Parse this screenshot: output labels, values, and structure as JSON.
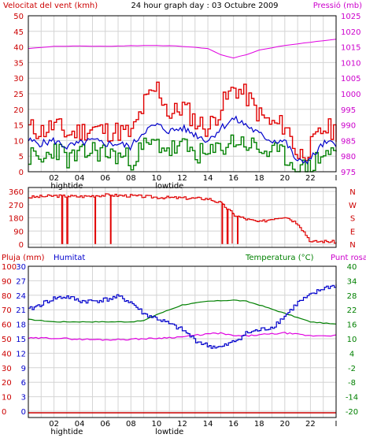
{
  "chart_data": [
    {
      "type": "line",
      "title": "24 hour graph day : 03 Octubre 2009",
      "left_axis_label": "Velocitat del vent (kmh)",
      "right_axis_label": "Pressió (mb)",
      "left_ticks": [
        "0",
        "5",
        "10",
        "15",
        "20",
        "25",
        "30",
        "35",
        "40",
        "45",
        "50"
      ],
      "right_ticks": [
        "975",
        "980",
        "985",
        "990",
        "995",
        "1000",
        "1005",
        "1010",
        "1015",
        "1020",
        "1025"
      ],
      "ylim_left": [
        0,
        50
      ],
      "ylim_right": [
        975,
        1025
      ],
      "x_ticks": [
        "02",
        "04",
        "06",
        "08",
        "10",
        "12",
        "14",
        "16",
        "18",
        "20",
        "22",
        "I"
      ],
      "x_sublabels": [
        "hightide",
        "lowtide"
      ],
      "grid": true,
      "colors": {
        "gust": "#e00000",
        "wind": "#0000cc",
        "average": "#008000",
        "pressure": "#e000e0",
        "grid": "#cccccc",
        "left_axis": "#cc0000",
        "right_axis": "#cc00cc"
      },
      "series": [
        {
          "name": "gust",
          "x": [
            0,
            1,
            2,
            3,
            4,
            5,
            6,
            7,
            8,
            9,
            10,
            11,
            12,
            13,
            14,
            15,
            16,
            17,
            18,
            19,
            20,
            21,
            22,
            23,
            24
          ],
          "values": [
            14,
            13,
            15,
            12,
            13,
            14,
            13,
            13,
            12,
            22,
            27,
            18,
            21,
            16,
            14,
            21,
            27,
            24,
            18,
            15,
            15,
            5,
            8,
            14,
            13
          ]
        },
        {
          "name": "wind",
          "x": [
            0,
            1,
            2,
            3,
            4,
            5,
            6,
            7,
            8,
            9,
            10,
            11,
            12,
            13,
            14,
            15,
            16,
            17,
            18,
            19,
            20,
            21,
            22,
            23,
            24
          ],
          "values": [
            10,
            9,
            10,
            8,
            9,
            10,
            9,
            9,
            8,
            13,
            15,
            13,
            14,
            12,
            10,
            14,
            17,
            15,
            12,
            10,
            10,
            3,
            4,
            9,
            9
          ]
        },
        {
          "name": "average",
          "x": [
            0,
            1,
            2,
            3,
            4,
            5,
            6,
            7,
            8,
            9,
            10,
            11,
            12,
            13,
            14,
            15,
            16,
            17,
            18,
            19,
            20,
            21,
            22,
            23,
            24
          ],
          "values": [
            5,
            3,
            8,
            4,
            5,
            7,
            6,
            5,
            4,
            8,
            9,
            7,
            8,
            6,
            5,
            8,
            10,
            9,
            7,
            6,
            5,
            0,
            2,
            6,
            6
          ]
        },
        {
          "name": "pressure",
          "axis": "right",
          "x": [
            0,
            2,
            4,
            6,
            8,
            10,
            12,
            14,
            15,
            16,
            17,
            18,
            20,
            22,
            24
          ],
          "values": [
            1014.5,
            1015.2,
            1015.3,
            1015.2,
            1015.4,
            1015.5,
            1015.2,
            1014.5,
            1012.5,
            1011.5,
            1012.5,
            1014.0,
            1015.5,
            1016.5,
            1017.5
          ]
        }
      ]
    },
    {
      "type": "line",
      "left_ticks": [
        "360",
        "270",
        "180",
        "90",
        "0"
      ],
      "right_ticks": [
        "N",
        "W",
        "S",
        "E",
        "N"
      ],
      "ylim": [
        0,
        360
      ],
      "series": [
        {
          "name": "direction",
          "x": [
            0,
            2,
            4,
            6,
            8,
            10,
            12,
            14,
            15,
            16,
            17,
            18,
            19,
            20,
            21,
            22,
            23,
            24
          ],
          "values": [
            320,
            330,
            325,
            335,
            330,
            320,
            315,
            310,
            280,
            200,
            170,
            150,
            175,
            190,
            140,
            15,
            20,
            15
          ]
        }
      ]
    },
    {
      "type": "line",
      "left_top_label": "Pluja (mm)",
      "hum_label": "Humitat",
      "temp_label": "Temperatura (°C)",
      "dew_label": "Punt rosada",
      "rain_ticks": [
        "100",
        "90",
        "80",
        "70",
        "60",
        "50",
        "40",
        "30",
        "20",
        "10",
        "0"
      ],
      "hum_ticks": [
        "30",
        "27",
        "24",
        "21",
        "18",
        "15",
        "12",
        "9",
        "6",
        "3",
        "0"
      ],
      "temp_ticks": [
        "40",
        "34",
        "28",
        "22",
        "16",
        "10",
        "4",
        "-2",
        "-8",
        "-14",
        "-20"
      ],
      "x_ticks": [
        "02",
        "04",
        "06",
        "08",
        "10",
        "12",
        "14",
        "16",
        "18",
        "20",
        "22",
        "I"
      ],
      "x_sublabels": [
        "hightide",
        "lowtide"
      ],
      "ylim_humidity": [
        0,
        100
      ],
      "ylim_temp": [
        -20,
        40
      ],
      "colors": {
        "rain": "#cc0000",
        "humidity": "#0000cc",
        "temp": "#008000",
        "dew": "#e000e0"
      },
      "series": [
        {
          "name": "rain",
          "x": [
            0,
            24
          ],
          "values": [
            0,
            0
          ]
        },
        {
          "name": "humidity",
          "x": [
            0,
            1,
            2,
            3,
            4,
            5,
            6,
            7,
            8,
            9,
            10,
            11,
            12,
            13,
            14,
            15,
            16,
            17,
            18,
            19,
            20,
            21,
            22,
            23,
            24
          ],
          "values": [
            70,
            74,
            78,
            79,
            76,
            76,
            77,
            79,
            75,
            67,
            64,
            60,
            56,
            49,
            45,
            44,
            48,
            54,
            56,
            58,
            66,
            75,
            80,
            85,
            87
          ]
        },
        {
          "name": "temp",
          "x": [
            0,
            2,
            4,
            6,
            8,
            9,
            10,
            11,
            12,
            14,
            16,
            17,
            18,
            20,
            22,
            24
          ],
          "values": [
            18,
            17,
            17,
            17,
            17,
            17.5,
            20,
            22,
            24,
            25.5,
            26,
            25.5,
            24,
            20.5,
            17,
            16
          ]
        },
        {
          "name": "dew",
          "x": [
            0,
            2,
            4,
            6,
            8,
            10,
            12,
            14,
            15,
            16,
            17,
            18,
            20,
            22,
            24
          ],
          "values": [
            10.2,
            10.3,
            9.8,
            9.6,
            9.8,
            10.2,
            10.8,
            12,
            12.3,
            11.2,
            11.2,
            11.6,
            12.4,
            11.2,
            11.4
          ]
        }
      ]
    }
  ]
}
